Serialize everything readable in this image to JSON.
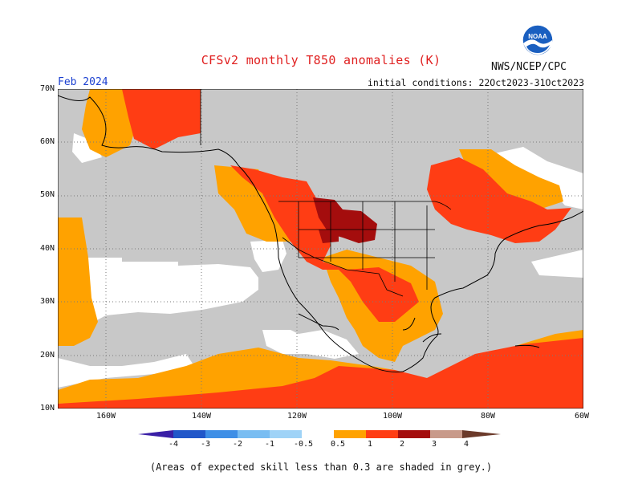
{
  "title": "CFSv2 monthly T850 anomalies (K)",
  "agency": "NWS/NCEP/CPC",
  "logo_text": "NOAA",
  "forecast_month": "Feb 2024",
  "initial_conditions": "initial conditions: 22Oct2023-31Oct2023",
  "lat_labels": [
    "70N",
    "60N",
    "50N",
    "40N",
    "30N",
    "20N",
    "10N"
  ],
  "lon_labels": [
    "160W",
    "140W",
    "120W",
    "100W",
    "80W",
    "60W"
  ],
  "colorbar": {
    "ticks": [
      "-4",
      "-3",
      "-2",
      "-1",
      "-0.5",
      "0.5",
      "1",
      "2",
      "3",
      "4"
    ],
    "colors": [
      "#3a1fa6",
      "#2157c9",
      "#3f8fe6",
      "#79bdf2",
      "#ffffff",
      "#ffa200",
      "#ff3d14",
      "#a40d0d",
      "#c89a8a"
    ]
  },
  "map": {
    "region": "North America",
    "lat_range": [
      10,
      70
    ],
    "lon_range": [
      -170,
      -60
    ],
    "colors": {
      "grey": "#c8c8c8",
      "white": "#ffffff",
      "orange": "#ffa200",
      "red": "#ff3d14",
      "darkred": "#a40d0d"
    }
  },
  "footnote": "(Areas of expected skill less than 0.3 are shaded in grey.)"
}
